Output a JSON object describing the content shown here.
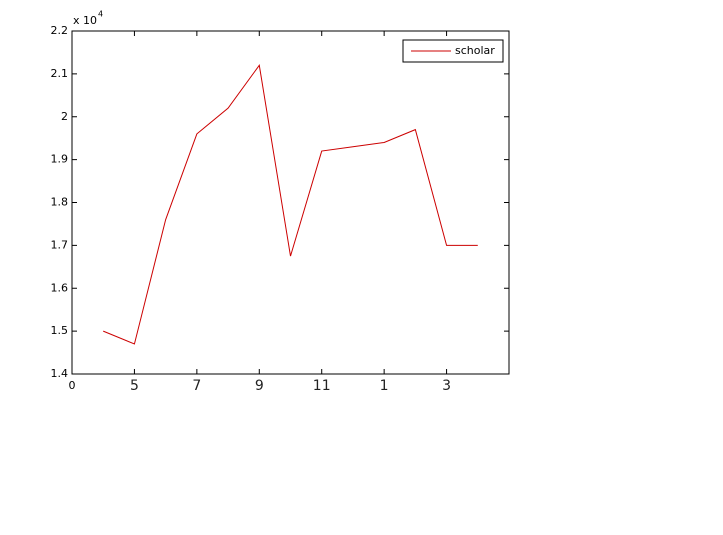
{
  "chart_data": {
    "type": "line",
    "y_multiplier": "x 10",
    "y_exponent": "4",
    "x": [
      1,
      2,
      3,
      4,
      5,
      6,
      7,
      8,
      9,
      10,
      11,
      12,
      13
    ],
    "series": [
      {
        "name": "scholar",
        "color": "#cc0000",
        "values": [
          1.5,
          1.47,
          1.76,
          1.96,
          2.02,
          2.12,
          1.675,
          1.92,
          1.93,
          1.94,
          1.97,
          1.7,
          1.7
        ]
      }
    ],
    "xlim": [
      0,
      14
    ],
    "xticks": [
      0,
      {
        "value": 2,
        "label": "5"
      },
      {
        "value": 4,
        "label": "7"
      },
      {
        "value": 6,
        "label": "9"
      },
      {
        "value": 8,
        "label": "11"
      },
      {
        "value": 10,
        "label": "1"
      },
      {
        "value": 12,
        "label": "3"
      }
    ],
    "ylim": [
      1.4,
      2.2
    ],
    "yticks": [
      1.4,
      1.5,
      1.6,
      1.7,
      1.8,
      1.9,
      2,
      2.1,
      2.2
    ],
    "legend": "upper right"
  }
}
